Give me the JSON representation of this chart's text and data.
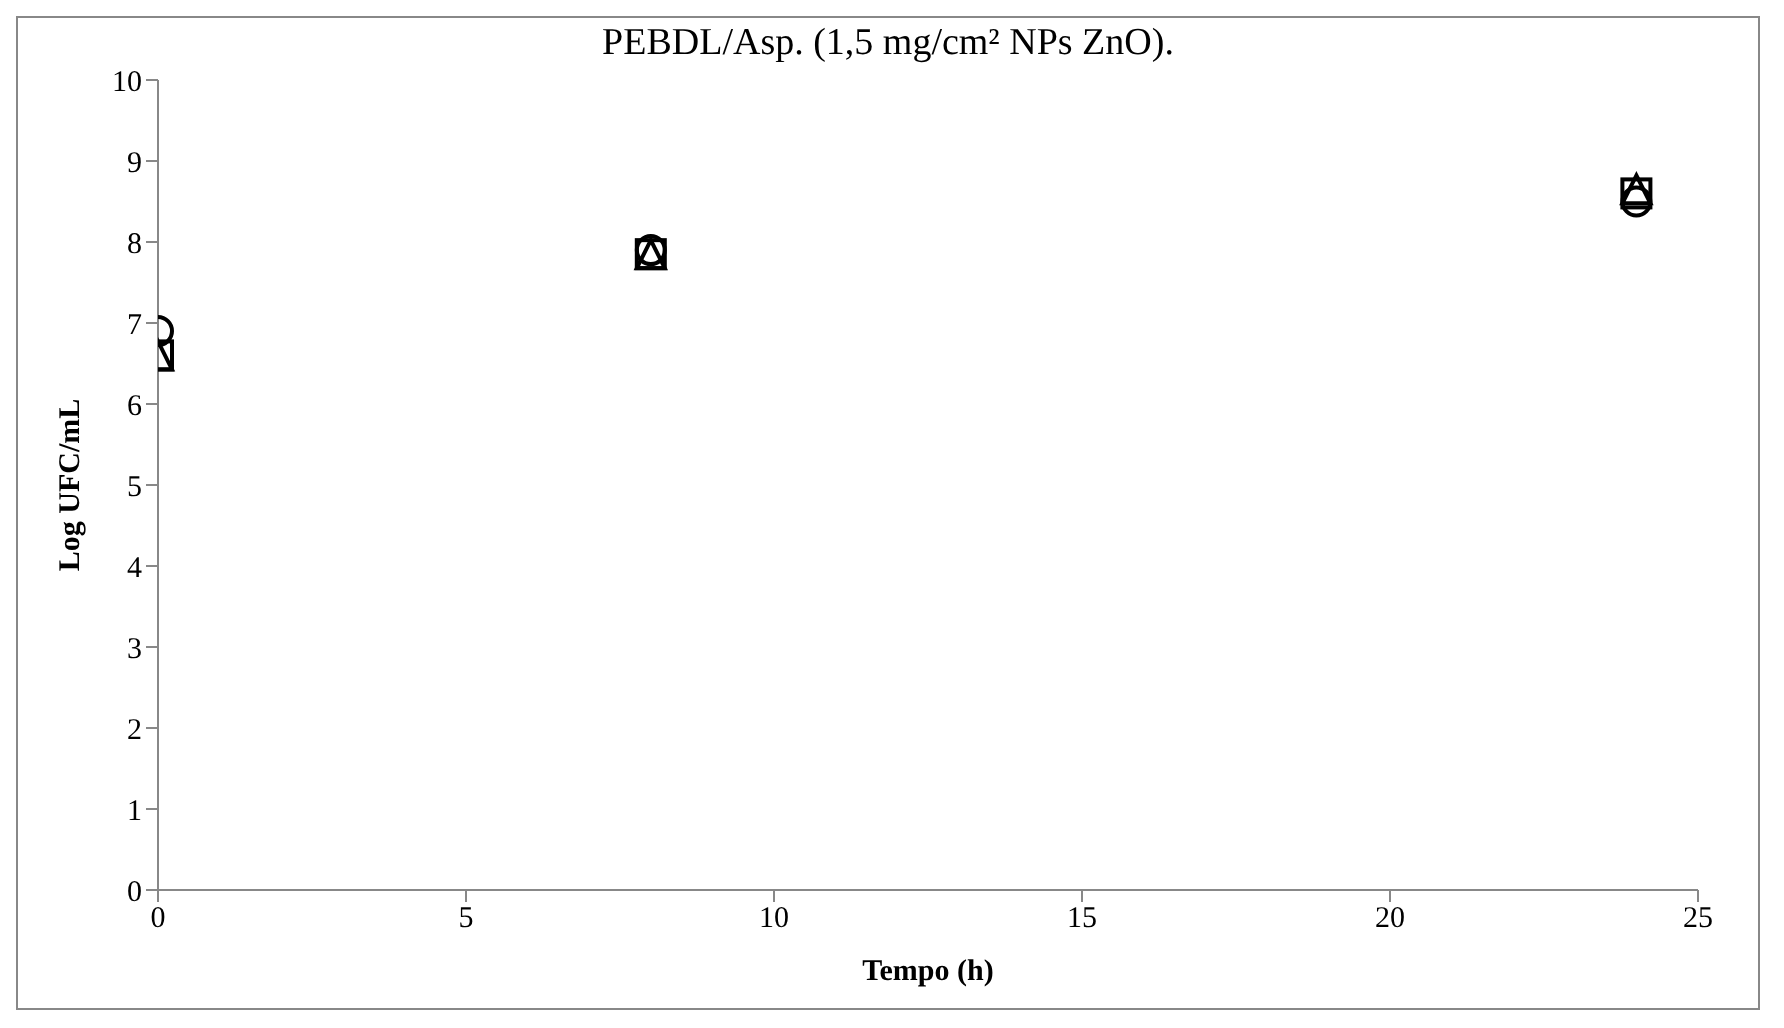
{
  "chart_data": {
    "type": "scatter",
    "title": "PEBDL/Asp. (1,5 mg/cm² NPs ZnO).",
    "xlabel": "Tempo (h)",
    "ylabel": "Log UFC/mL",
    "x": [
      0,
      8,
      24
    ],
    "series": [
      {
        "color": "#000000",
        "marker": "circle",
        "values": [
          6.9,
          7.9,
          8.5
        ]
      },
      {
        "color": "#000000",
        "marker": "square",
        "values": [
          6.6,
          7.85,
          8.6
        ]
      },
      {
        "color": "#000000",
        "marker": "triangle",
        "values": [
          6.6,
          7.85,
          8.65
        ]
      }
    ],
    "xlim": [
      0,
      25
    ],
    "xticks": [
      0,
      5,
      10,
      15,
      20,
      25
    ],
    "ylim": [
      0,
      10
    ],
    "yticks": [
      0,
      1,
      2,
      3,
      4,
      5,
      6,
      7,
      8,
      9,
      10
    ],
    "grid": false,
    "legend": false
  }
}
